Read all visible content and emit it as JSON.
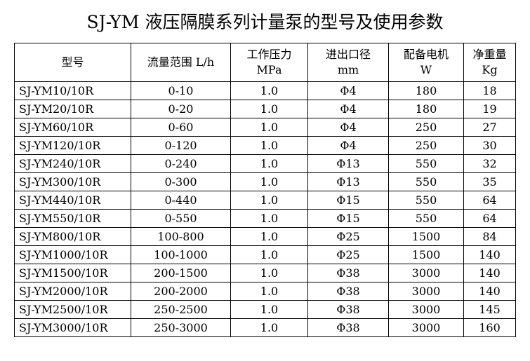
{
  "title": "SJ-YM 液压隔膜系列计量泵的型号及使用参数",
  "table": {
    "headers": [
      {
        "line1": "型号",
        "line2": ""
      },
      {
        "line1": "流量范围 L/h",
        "line2": ""
      },
      {
        "line1": "工作压力",
        "line2": "MPa"
      },
      {
        "line1": "进出口径",
        "line2": "mm"
      },
      {
        "line1": "配备电机",
        "line2": "W"
      },
      {
        "line1": "净重量",
        "line2": "Kg"
      }
    ],
    "rows": [
      [
        "SJ-YM10/10R",
        "0-10",
        "1.0",
        "Φ4",
        "180",
        "18"
      ],
      [
        "SJ-YM20/10R",
        "0-20",
        "1.0",
        "Φ4",
        "180",
        "19"
      ],
      [
        "SJ-YM60/10R",
        "0-60",
        "1.0",
        "Φ4",
        "250",
        "27"
      ],
      [
        "SJ-YM120/10R",
        "0-120",
        "1.0",
        "Φ4",
        "250",
        "30"
      ],
      [
        "SJ-YM240/10R",
        "0-240",
        "1.0",
        "Φ13",
        "550",
        "32"
      ],
      [
        "SJ-YM300/10R",
        "0-300",
        "1.0",
        "Φ13",
        "550",
        "35"
      ],
      [
        "SJ-YM440/10R",
        "0-440",
        "1.0",
        "Φ15",
        "550",
        "64"
      ],
      [
        "SJ-YM550/10R",
        "0-550",
        "1.0",
        "Φ15",
        "550",
        "64"
      ],
      [
        "SJ-YM800/10R",
        "100-800",
        "1.0",
        "Φ25",
        "1500",
        "84"
      ],
      [
        "SJ-YM1000/10R",
        "100-1000",
        "1.0",
        "Φ25",
        "1500",
        "140"
      ],
      [
        "SJ-YM1500/10R",
        "200-1500",
        "1.0",
        "Φ38",
        "3000",
        "140"
      ],
      [
        "SJ-YM2000/10R",
        "200-2000",
        "1.0",
        "Φ38",
        "3000",
        "140"
      ],
      [
        "SJ-YM2500/10R",
        "250-2500",
        "1.0",
        "Φ38",
        "3000",
        "145"
      ],
      [
        "SJ-YM3000/10R",
        "250-3000",
        "1.0",
        "Φ38",
        "3000",
        "160"
      ]
    ]
  }
}
